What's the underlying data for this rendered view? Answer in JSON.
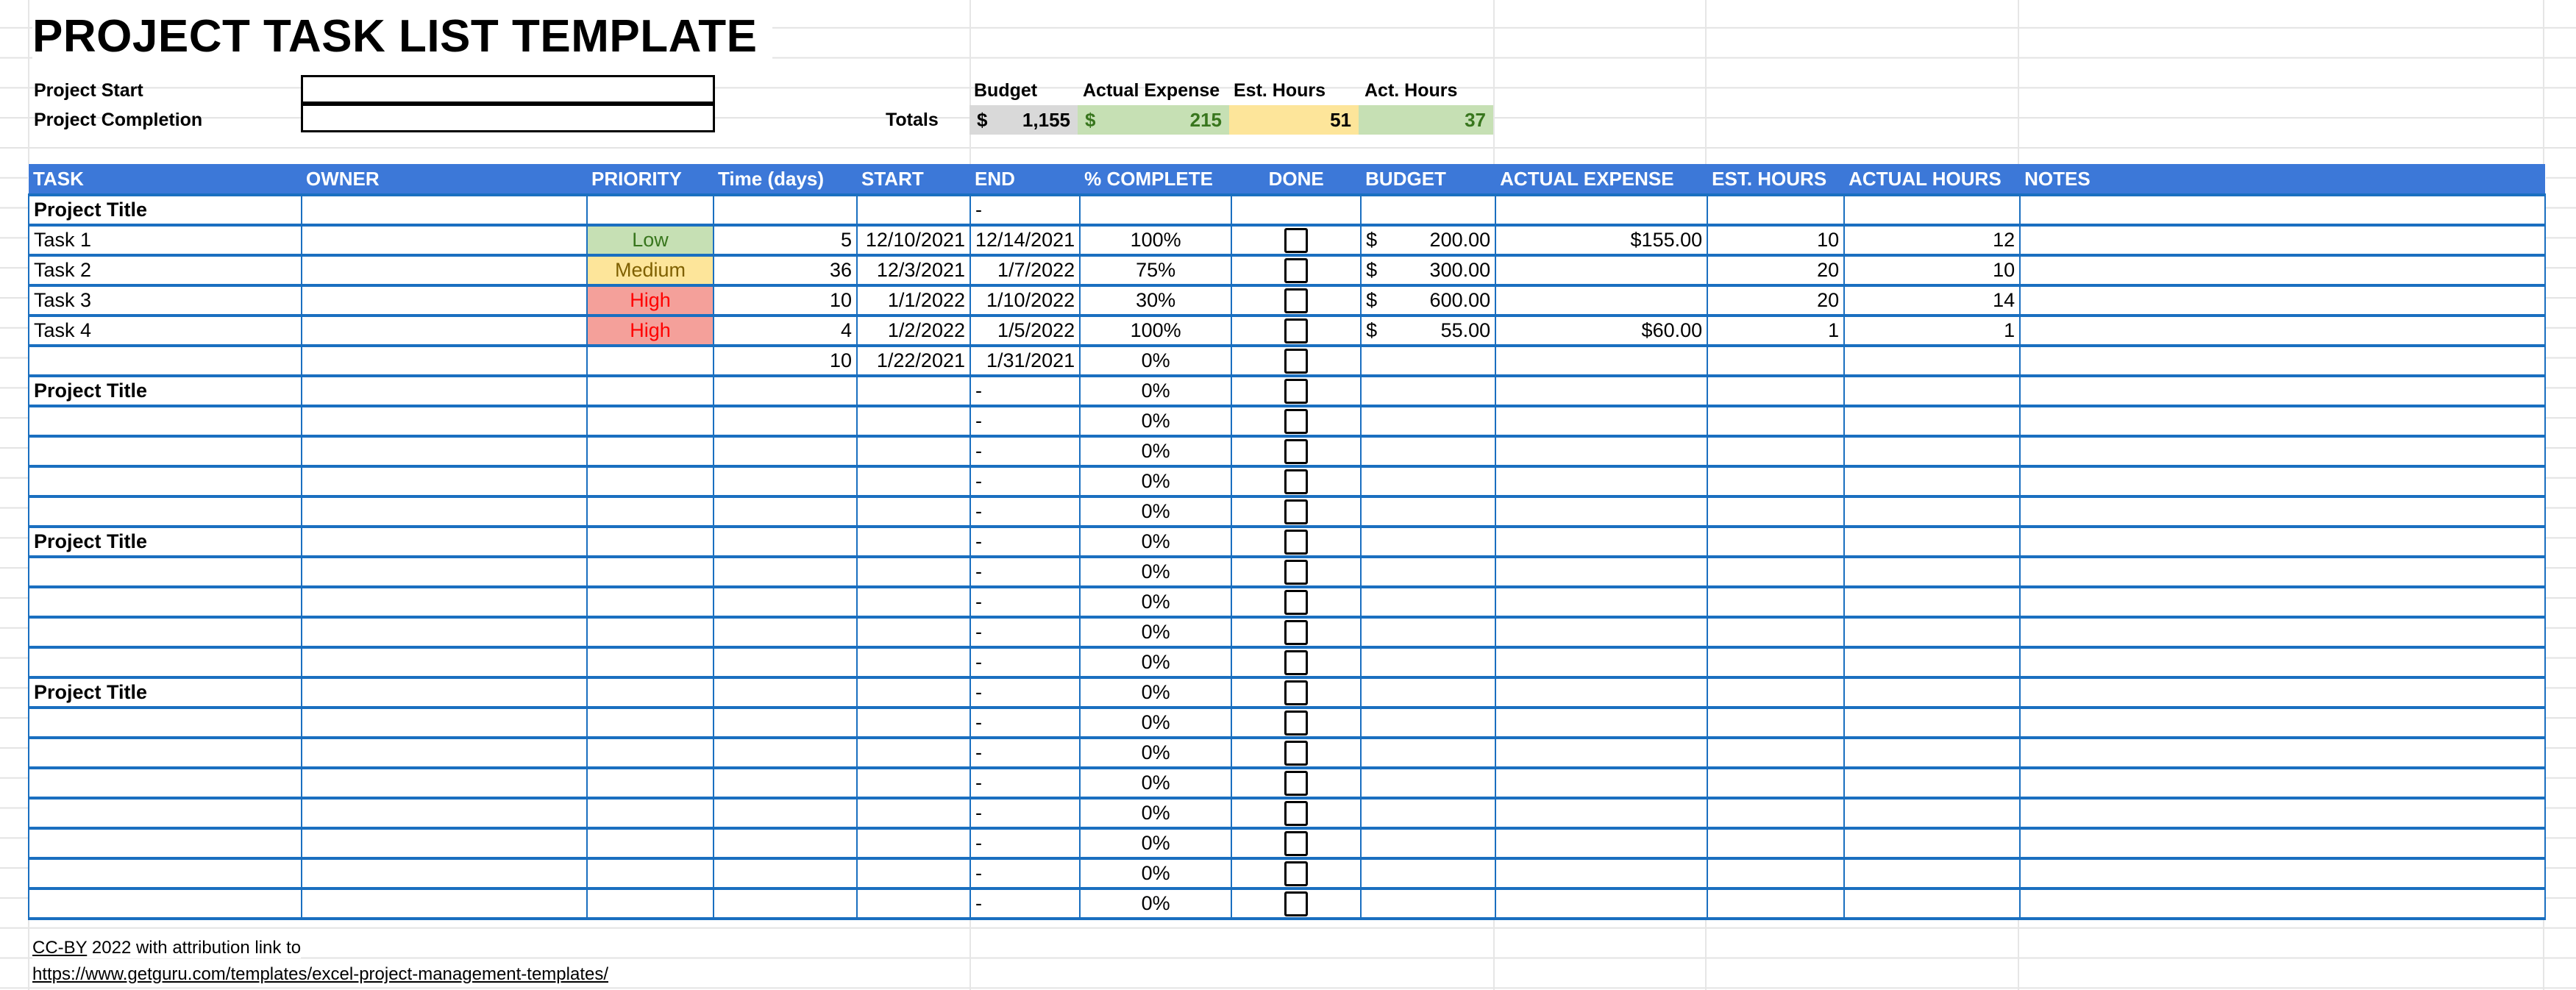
{
  "title": "PROJECT TASK LIST TEMPLATE",
  "project_start_label": "Project Start",
  "project_completion_label": "Project Completion",
  "project_start_value": "",
  "project_completion_value": "",
  "totals": {
    "label": "Totals",
    "headers": [
      "Budget",
      "Actual Expense",
      "Est. Hours",
      "Act. Hours"
    ],
    "budget_symbol": "$",
    "budget": "1,155",
    "actual_symbol": "$",
    "actual": "215",
    "est_hours": "51",
    "act_hours": "37"
  },
  "colors": {
    "header": "#3c78d8",
    "border": "#1a6fc0",
    "low": "#c6e0b4",
    "medium": "#fde59a",
    "high": "#f4a09a",
    "budget_total": "#d9d9d9",
    "est_total": "#fde59a",
    "green_total": "#c6e0b4"
  },
  "columns": [
    "TASK",
    "OWNER",
    "PRIORITY",
    "Time (days)",
    "START",
    "END",
    "% COMPLETE",
    "DONE",
    "BUDGET",
    "ACTUAL EXPENSE",
    "EST. HOURS",
    "ACTUAL HOURS",
    "NOTES"
  ],
  "rows": [
    {
      "task": "Project Title",
      "title": true,
      "end": "-"
    },
    {
      "task": "Task 1",
      "priority": "Low",
      "days": "5",
      "start": "12/10/2021",
      "end": "12/14/2021",
      "pct": "100%",
      "done": false,
      "budget": "200.00",
      "actual": "$155.00",
      "est": "10",
      "act": "12"
    },
    {
      "task": "Task 2",
      "priority": "Medium",
      "days": "36",
      "start": "12/3/2021",
      "end": "1/7/2022",
      "pct": "75%",
      "done": false,
      "budget": "300.00",
      "est": "20",
      "act": "10"
    },
    {
      "task": "Task 3",
      "priority": "High",
      "days": "10",
      "start": "1/1/2022",
      "end": "1/10/2022",
      "pct": "30%",
      "done": false,
      "budget": "600.00",
      "est": "20",
      "act": "14"
    },
    {
      "task": "Task 4",
      "priority": "High",
      "days": "4",
      "start": "1/2/2022",
      "end": "1/5/2022",
      "pct": "100%",
      "done": false,
      "budget": "55.00",
      "actual": "$60.00",
      "est": "1",
      "act": "1"
    },
    {
      "days": "10",
      "start": "1/22/2021",
      "end": "1/31/2021",
      "pct": "0%",
      "done": false
    },
    {
      "task": "Project Title",
      "title": true,
      "end": "-",
      "pct": "0%",
      "done": false
    },
    {
      "end": "-",
      "pct": "0%",
      "done": false
    },
    {
      "end": "-",
      "pct": "0%",
      "done": false
    },
    {
      "end": "-",
      "pct": "0%",
      "done": false
    },
    {
      "end": "-",
      "pct": "0%",
      "done": false
    },
    {
      "task": "Project Title",
      "title": true,
      "end": "-",
      "pct": "0%",
      "done": false
    },
    {
      "end": "-",
      "pct": "0%",
      "done": false
    },
    {
      "end": "-",
      "pct": "0%",
      "done": false
    },
    {
      "end": "-",
      "pct": "0%",
      "done": false
    },
    {
      "end": "-",
      "pct": "0%",
      "done": false
    },
    {
      "task": "Project Title",
      "title": true,
      "end": "-",
      "pct": "0%",
      "done": false
    },
    {
      "end": "-",
      "pct": "0%",
      "done": false
    },
    {
      "end": "-",
      "pct": "0%",
      "done": false
    },
    {
      "end": "-",
      "pct": "0%",
      "done": false
    },
    {
      "end": "-",
      "pct": "0%",
      "done": false
    },
    {
      "end": "-",
      "pct": "0%",
      "done": false
    },
    {
      "end": "-",
      "pct": "0%",
      "done": false
    },
    {
      "end": "-",
      "pct": "0%",
      "done": false
    }
  ],
  "footer": {
    "license_link": "CC-BY",
    "text": " 2022 with attribution link to",
    "url": "https://www.getguru.com/templates/excel-project-management-templates/"
  }
}
